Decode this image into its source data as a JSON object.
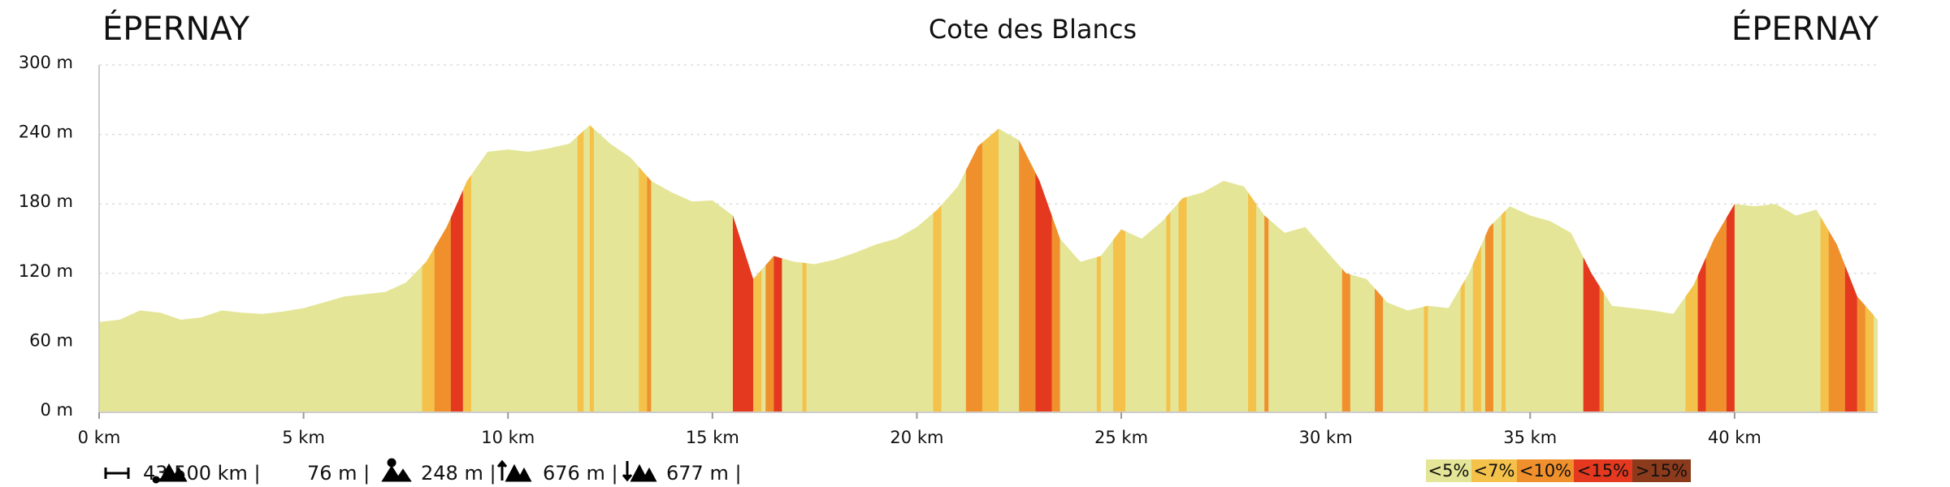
{
  "chart_data": {
    "type": "elevation-profile",
    "title": "Cote des Blancs",
    "start_label": "ÉPERNAY",
    "end_label": "ÉPERNAY",
    "x": [
      0,
      0.5,
      1,
      1.5,
      2,
      2.5,
      3,
      3.5,
      4,
      4.5,
      5,
      5.5,
      6,
      6.5,
      7,
      7.5,
      8,
      8.5,
      9,
      9.5,
      10,
      10.5,
      11,
      11.5,
      12,
      12.5,
      13,
      13.5,
      14,
      14.5,
      15,
      15.5,
      16,
      16.5,
      17,
      17.5,
      18,
      18.5,
      19,
      19.5,
      20,
      20.5,
      21,
      21.5,
      22,
      22.5,
      23,
      23.5,
      24,
      24.5,
      25,
      25.5,
      26,
      26.5,
      27,
      27.5,
      28,
      28.5,
      29,
      29.5,
      30,
      30.5,
      31,
      31.5,
      32,
      32.5,
      33,
      33.5,
      34,
      34.5,
      35,
      35.5,
      36,
      36.5,
      37,
      37.5,
      38,
      38.5,
      39,
      39.5,
      40,
      40.5,
      41,
      41.5,
      42,
      42.5,
      43,
      43.5
    ],
    "values": [
      78,
      80,
      88,
      86,
      80,
      82,
      88,
      86,
      85,
      87,
      90,
      95,
      100,
      102,
      104,
      112,
      130,
      160,
      200,
      225,
      227,
      225,
      228,
      232,
      248,
      232,
      220,
      200,
      190,
      182,
      183,
      170,
      115,
      135,
      130,
      128,
      132,
      138,
      145,
      150,
      160,
      175,
      195,
      230,
      245,
      235,
      200,
      150,
      130,
      135,
      158,
      150,
      165,
      185,
      190,
      200,
      195,
      170,
      155,
      160,
      140,
      120,
      115,
      95,
      88,
      92,
      90,
      120,
      160,
      178,
      170,
      165,
      155,
      120,
      92,
      90,
      88,
      85,
      110,
      150,
      180,
      178,
      180,
      170,
      175,
      145,
      100,
      80
    ],
    "color": "#e5e597",
    "segments": [
      {
        "x0": 7.9,
        "x1": 8.2,
        "class": "<7%"
      },
      {
        "x0": 8.2,
        "x1": 8.6,
        "class": "<10%"
      },
      {
        "x0": 8.6,
        "x1": 8.9,
        "class": "<15%"
      },
      {
        "x0": 8.9,
        "x1": 9.1,
        "class": "<7%"
      },
      {
        "x0": 11.7,
        "x1": 11.85,
        "class": "<7%"
      },
      {
        "x0": 12.0,
        "x1": 12.1,
        "class": "<7%"
      },
      {
        "x0": 13.2,
        "x1": 13.4,
        "class": "<7%"
      },
      {
        "x0": 13.4,
        "x1": 13.5,
        "class": "<10%"
      },
      {
        "x0": 15.5,
        "x1": 16.0,
        "class": "<15%"
      },
      {
        "x0": 16.0,
        "x1": 16.2,
        "class": "<7%"
      },
      {
        "x0": 16.3,
        "x1": 16.5,
        "class": "<10%"
      },
      {
        "x0": 16.5,
        "x1": 16.7,
        "class": "<15%"
      },
      {
        "x0": 17.2,
        "x1": 17.3,
        "class": "<7%"
      },
      {
        "x0": 20.4,
        "x1": 20.6,
        "class": "<7%"
      },
      {
        "x0": 21.2,
        "x1": 21.6,
        "class": "<10%"
      },
      {
        "x0": 21.6,
        "x1": 22.0,
        "class": "<7%"
      },
      {
        "x0": 22.5,
        "x1": 22.9,
        "class": "<10%"
      },
      {
        "x0": 22.9,
        "x1": 23.3,
        "class": "<15%"
      },
      {
        "x0": 23.3,
        "x1": 23.5,
        "class": "<10%"
      },
      {
        "x0": 24.4,
        "x1": 24.5,
        "class": "<7%"
      },
      {
        "x0": 24.8,
        "x1": 25.1,
        "class": "<7%"
      },
      {
        "x0": 26.1,
        "x1": 26.2,
        "class": "<7%"
      },
      {
        "x0": 26.4,
        "x1": 26.6,
        "class": "<7%"
      },
      {
        "x0": 28.1,
        "x1": 28.3,
        "class": "<7%"
      },
      {
        "x0": 28.5,
        "x1": 28.6,
        "class": "<10%"
      },
      {
        "x0": 30.4,
        "x1": 30.6,
        "class": "<10%"
      },
      {
        "x0": 31.2,
        "x1": 31.4,
        "class": "<10%"
      },
      {
        "x0": 32.4,
        "x1": 32.5,
        "class": "<7%"
      },
      {
        "x0": 33.3,
        "x1": 33.4,
        "class": "<7%"
      },
      {
        "x0": 33.6,
        "x1": 33.8,
        "class": "<7%"
      },
      {
        "x0": 33.9,
        "x1": 34.1,
        "class": "<10%"
      },
      {
        "x0": 34.3,
        "x1": 34.4,
        "class": "<7%"
      },
      {
        "x0": 36.3,
        "x1": 36.7,
        "class": "<15%"
      },
      {
        "x0": 36.7,
        "x1": 36.8,
        "class": "<10%"
      },
      {
        "x0": 38.8,
        "x1": 39.1,
        "class": "<7%"
      },
      {
        "x0": 39.1,
        "x1": 39.3,
        "class": "<15%"
      },
      {
        "x0": 39.3,
        "x1": 39.8,
        "class": "<10%"
      },
      {
        "x0": 39.8,
        "x1": 40.0,
        "class": "<15%"
      },
      {
        "x0": 42.1,
        "x1": 42.3,
        "class": "<7%"
      },
      {
        "x0": 42.3,
        "x1": 42.7,
        "class": "<10%"
      },
      {
        "x0": 42.7,
        "x1": 43.0,
        "class": "<15%"
      },
      {
        "x0": 43.0,
        "x1": 43.2,
        "class": "<10%"
      },
      {
        "x0": 43.2,
        "x1": 43.4,
        "class": "<7%"
      }
    ],
    "legend": [
      {
        "name": "<5%",
        "color": "#e5e597"
      },
      {
        "name": "<7%",
        "color": "#f4c24a"
      },
      {
        "name": "<10%",
        "color": "#f0902c"
      },
      {
        "name": "<15%",
        "color": "#e4391f"
      },
      {
        "name": ">15%",
        "color": "#8b3a1c"
      }
    ],
    "xlim": [
      0,
      43.5
    ],
    "xticks": [
      {
        "value": 0,
        "label": "0 km"
      },
      {
        "value": 5,
        "label": "5 km"
      },
      {
        "value": 10,
        "label": "10 km"
      },
      {
        "value": 15,
        "label": "15 km"
      },
      {
        "value": 20,
        "label": "20 km"
      },
      {
        "value": 25,
        "label": "25 km"
      },
      {
        "value": 30,
        "label": "30 km"
      },
      {
        "value": 35,
        "label": "35 km"
      },
      {
        "value": 40,
        "label": "40 km"
      }
    ],
    "ylim": [
      0,
      300
    ],
    "yticks": [
      {
        "value": 0,
        "label": "0 m"
      },
      {
        "value": 60,
        "label": "60 m"
      },
      {
        "value": 120,
        "label": "120 m"
      },
      {
        "value": 180,
        "label": "180 m"
      },
      {
        "value": 240,
        "label": "240 m"
      },
      {
        "value": 300,
        "label": "300 m"
      }
    ],
    "grid": true,
    "stats": [
      "43.500 km |",
      "76 m |",
      "248 m |",
      "676 m |",
      "677 m |"
    ]
  }
}
